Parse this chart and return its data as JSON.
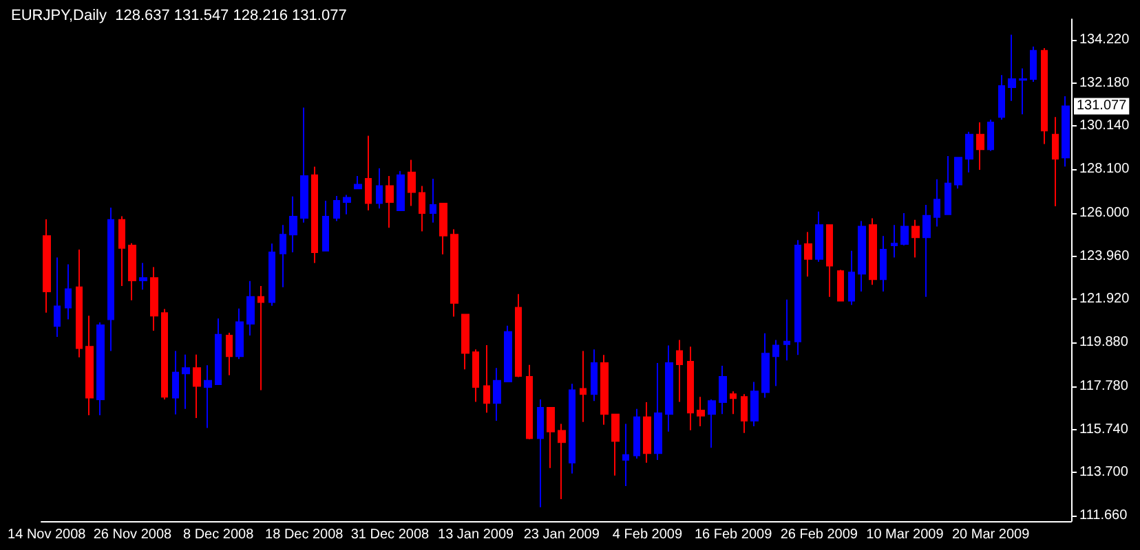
{
  "chart_data": {
    "type": "candlestick",
    "title": "EURJPY,Daily  128.637 131.547 128.216 131.077",
    "categories": [
      "14 Nov 2008",
      null,
      null,
      null,
      null,
      null,
      null,
      null,
      "26 Nov 2008",
      null,
      null,
      null,
      null,
      null,
      null,
      null,
      "8 Dec 2008",
      null,
      null,
      null,
      null,
      null,
      null,
      null,
      "18 Dec 2008",
      null,
      null,
      null,
      null,
      null,
      null,
      null,
      "31 Dec 2008",
      null,
      null,
      null,
      null,
      null,
      null,
      null,
      "13 Jan 2009",
      null,
      null,
      null,
      null,
      null,
      null,
      null,
      "23 Jan 2009",
      null,
      null,
      null,
      null,
      null,
      null,
      null,
      "4 Feb 2009",
      null,
      null,
      null,
      null,
      null,
      null,
      null,
      "16 Feb 2009",
      null,
      null,
      null,
      null,
      null,
      null,
      null,
      "26 Feb 2009",
      null,
      null,
      null,
      null,
      null,
      null,
      null,
      "10 Mar 2009",
      null,
      null,
      null,
      null,
      null,
      null,
      null,
      "20 Mar 2009",
      null,
      null,
      null,
      null,
      null,
      null,
      null
    ],
    "ohlc": [
      [
        124.92,
        125.71,
        121.29,
        122.29
      ],
      [
        120.65,
        123.9,
        120.14,
        121.59
      ],
      [
        121.52,
        123.58,
        120.97,
        122.4
      ],
      [
        122.49,
        124.28,
        119.17,
        119.6
      ],
      [
        119.67,
        121.14,
        116.42,
        117.25
      ],
      [
        117.17,
        120.82,
        116.42,
        120.69
      ],
      [
        120.97,
        126.27,
        119.47,
        125.69
      ],
      [
        125.69,
        125.86,
        122.55,
        124.35
      ],
      [
        124.47,
        124.58,
        121.87,
        122.81
      ],
      [
        122.81,
        123.64,
        122.38,
        122.93
      ],
      [
        122.93,
        123.45,
        120.43,
        121.14
      ],
      [
        121.27,
        121.46,
        117.17,
        117.29
      ],
      [
        117.25,
        119.47,
        116.46,
        118.45
      ],
      [
        118.4,
        119.3,
        116.72,
        118.66
      ],
      [
        118.66,
        119.3,
        116.29,
        117.81
      ],
      [
        117.76,
        118.79,
        115.82,
        118.06
      ],
      [
        117.89,
        121.01,
        117.89,
        120.24
      ],
      [
        120.2,
        120.33,
        118.32,
        119.22
      ],
      [
        119.22,
        121.48,
        119.09,
        120.84
      ],
      [
        120.76,
        122.79,
        120.2,
        122.04
      ],
      [
        122.04,
        122.55,
        117.61,
        121.78
      ],
      [
        121.78,
        124.56,
        121.61,
        124.15
      ],
      [
        124.09,
        125.44,
        122.49,
        124.99
      ],
      [
        124.99,
        126.8,
        124.15,
        125.84
      ],
      [
        125.78,
        131.01,
        125.56,
        127.77
      ],
      [
        127.81,
        128.21,
        123.64,
        124.15
      ],
      [
        124.22,
        126.59,
        124.22,
        125.84
      ],
      [
        125.78,
        126.82,
        125.63,
        126.59
      ],
      [
        126.53,
        126.87,
        125.95,
        126.74
      ],
      [
        127.17,
        127.77,
        127.17,
        127.36
      ],
      [
        127.64,
        129.67,
        126.14,
        126.48
      ],
      [
        126.48,
        128.13,
        126.23,
        127.29
      ],
      [
        127.29,
        127.77,
        125.31,
        126.53
      ],
      [
        126.14,
        128.0,
        126.1,
        127.81
      ],
      [
        127.94,
        128.53,
        126.35,
        127.0
      ],
      [
        126.97,
        127.29,
        125.14,
        126.01
      ],
      [
        126.01,
        127.64,
        125.56,
        126.4
      ],
      [
        126.46,
        126.48,
        124.05,
        124.94
      ],
      [
        124.99,
        125.24,
        121.1,
        121.74
      ],
      [
        121.2,
        121.2,
        118.6,
        119.37
      ],
      [
        119.41,
        119.54,
        117.06,
        117.76
      ],
      [
        117.81,
        119.75,
        116.54,
        117.0
      ],
      [
        117.0,
        118.66,
        116.16,
        118.06
      ],
      [
        118.02,
        120.67,
        118.02,
        120.37
      ],
      [
        121.52,
        122.17,
        118.23,
        118.28
      ],
      [
        118.25,
        118.81,
        115.28,
        115.33
      ],
      [
        115.33,
        117.17,
        112.06,
        116.78
      ],
      [
        116.78,
        116.78,
        113.92,
        115.65
      ],
      [
        115.69,
        116.01,
        112.44,
        115.14
      ],
      [
        114.17,
        117.91,
        113.66,
        117.61
      ],
      [
        117.68,
        119.47,
        116.1,
        117.42
      ],
      [
        117.42,
        119.54,
        117.1,
        118.9
      ],
      [
        118.9,
        119.28,
        115.97,
        116.48
      ],
      [
        116.46,
        116.48,
        113.56,
        115.2
      ],
      [
        114.3,
        116.01,
        113.06,
        114.54
      ],
      [
        114.51,
        116.72,
        114.37,
        116.33
      ],
      [
        116.33,
        117.04,
        114.17,
        114.62
      ],
      [
        114.62,
        118.9,
        114.3,
        116.52
      ],
      [
        116.48,
        119.73,
        115.65,
        118.9
      ],
      [
        119.47,
        119.99,
        117.06,
        118.83
      ],
      [
        118.96,
        119.67,
        115.71,
        116.54
      ],
      [
        116.65,
        117.29,
        115.9,
        116.4
      ],
      [
        116.48,
        117.17,
        114.88,
        117.1
      ],
      [
        117.04,
        118.77,
        116.48,
        118.25
      ],
      [
        117.42,
        117.55,
        116.48,
        117.23
      ],
      [
        117.29,
        117.42,
        115.58,
        116.16
      ],
      [
        116.16,
        118.0,
        115.9,
        117.55
      ],
      [
        117.51,
        120.31,
        117.25,
        119.35
      ],
      [
        119.22,
        119.99,
        117.81,
        119.73
      ],
      [
        119.79,
        121.91,
        119.02,
        119.92
      ],
      [
        119.92,
        124.73,
        119.28,
        124.47
      ],
      [
        124.54,
        125.11,
        123.0,
        123.83
      ],
      [
        123.83,
        126.08,
        123.7,
        125.44
      ],
      [
        125.44,
        125.44,
        122.04,
        123.51
      ],
      [
        123.26,
        123.32,
        121.85,
        121.85
      ],
      [
        121.85,
        124.22,
        121.65,
        123.19
      ],
      [
        123.13,
        125.63,
        122.29,
        125.37
      ],
      [
        125.44,
        125.76,
        122.61,
        122.87
      ],
      [
        122.87,
        124.92,
        122.29,
        124.28
      ],
      [
        124.47,
        125.44,
        123.9,
        124.56
      ],
      [
        124.54,
        126.01,
        124.47,
        125.37
      ],
      [
        125.37,
        125.69,
        123.9,
        124.86
      ],
      [
        124.86,
        126.4,
        122.04,
        125.88
      ],
      [
        125.82,
        127.61,
        125.37,
        126.65
      ],
      [
        125.95,
        128.71,
        125.95,
        127.42
      ],
      [
        127.36,
        128.64,
        127.17,
        128.64
      ],
      [
        128.58,
        129.86,
        127.94,
        129.73
      ],
      [
        129.73,
        130.31,
        128.06,
        129.03
      ],
      [
        129.03,
        130.44,
        128.96,
        130.31
      ],
      [
        130.56,
        132.55,
        130.44,
        132.04
      ],
      [
        131.97,
        134.47,
        131.33,
        132.36
      ],
      [
        132.32,
        132.87,
        130.69,
        132.36
      ],
      [
        132.36,
        133.9,
        132.23,
        133.71
      ],
      [
        133.71,
        133.83,
        129.28,
        129.92
      ],
      [
        129.73,
        130.56,
        126.33,
        128.58
      ],
      [
        128.637,
        131.547,
        128.216,
        131.077
      ]
    ],
    "colors": [
      "#ff0000",
      "#0000ff",
      "#0000ff",
      "#ff0000",
      "#ff0000",
      "#0000ff",
      "#0000ff",
      "#ff0000",
      "#ff0000",
      "#0000ff",
      "#ff0000",
      "#ff0000",
      "#0000ff",
      "#0000ff",
      "#ff0000",
      "#0000ff",
      "#0000ff",
      "#ff0000",
      "#0000ff",
      "#0000ff",
      "#ff0000",
      "#0000ff",
      "#0000ff",
      "#0000ff",
      "#0000ff",
      "#ff0000",
      "#0000ff",
      "#0000ff",
      "#0000ff",
      "#0000ff",
      "#ff0000",
      "#0000ff",
      "#ff0000",
      "#0000ff",
      "#ff0000",
      "#ff0000",
      "#0000ff",
      "#ff0000",
      "#ff0000",
      "#ff0000",
      "#ff0000",
      "#ff0000",
      "#0000ff",
      "#0000ff",
      "#ff0000",
      "#ff0000",
      "#0000ff",
      "#ff0000",
      "#ff0000",
      "#0000ff",
      "#ff0000",
      "#0000ff",
      "#ff0000",
      "#ff0000",
      "#0000ff",
      "#0000ff",
      "#ff0000",
      "#0000ff",
      "#0000ff",
      "#ff0000",
      "#ff0000",
      "#ff0000",
      "#0000ff",
      "#0000ff",
      "#ff0000",
      "#ff0000",
      "#0000ff",
      "#0000ff",
      "#0000ff",
      "#0000ff",
      "#0000ff",
      "#ff0000",
      "#0000ff",
      "#ff0000",
      "#ff0000",
      "#0000ff",
      "#0000ff",
      "#ff0000",
      "#0000ff",
      "#0000ff",
      "#0000ff",
      "#ff0000",
      "#0000ff",
      "#0000ff",
      "#0000ff",
      "#0000ff",
      "#0000ff",
      "#ff0000",
      "#0000ff",
      "#0000ff",
      "#0000ff",
      "#0000ff",
      "#0000ff",
      "#ff0000",
      "#ff0000",
      "#0000ff"
    ],
    "ylim": [
      111.4,
      135.2
    ],
    "yticks": [
      {
        "value": 111.66,
        "label": "111.660"
      },
      {
        "value": 113.7,
        "label": "113.700"
      },
      {
        "value": 115.74,
        "label": "115.740"
      },
      {
        "value": 117.78,
        "label": "117.780"
      },
      {
        "value": 119.88,
        "label": "119.880"
      },
      {
        "value": 121.92,
        "label": "121.920"
      },
      {
        "value": 123.96,
        "label": "123.960"
      },
      {
        "value": 126,
        "label": "126.000"
      },
      {
        "value": 128.1,
        "label": "128.100"
      },
      {
        "value": 130.14,
        "label": "130.140"
      },
      {
        "value": 132.18,
        "label": "132.180"
      },
      {
        "value": 134.22,
        "label": "134.220"
      }
    ],
    "annotations": [
      "131.077"
    ]
  }
}
